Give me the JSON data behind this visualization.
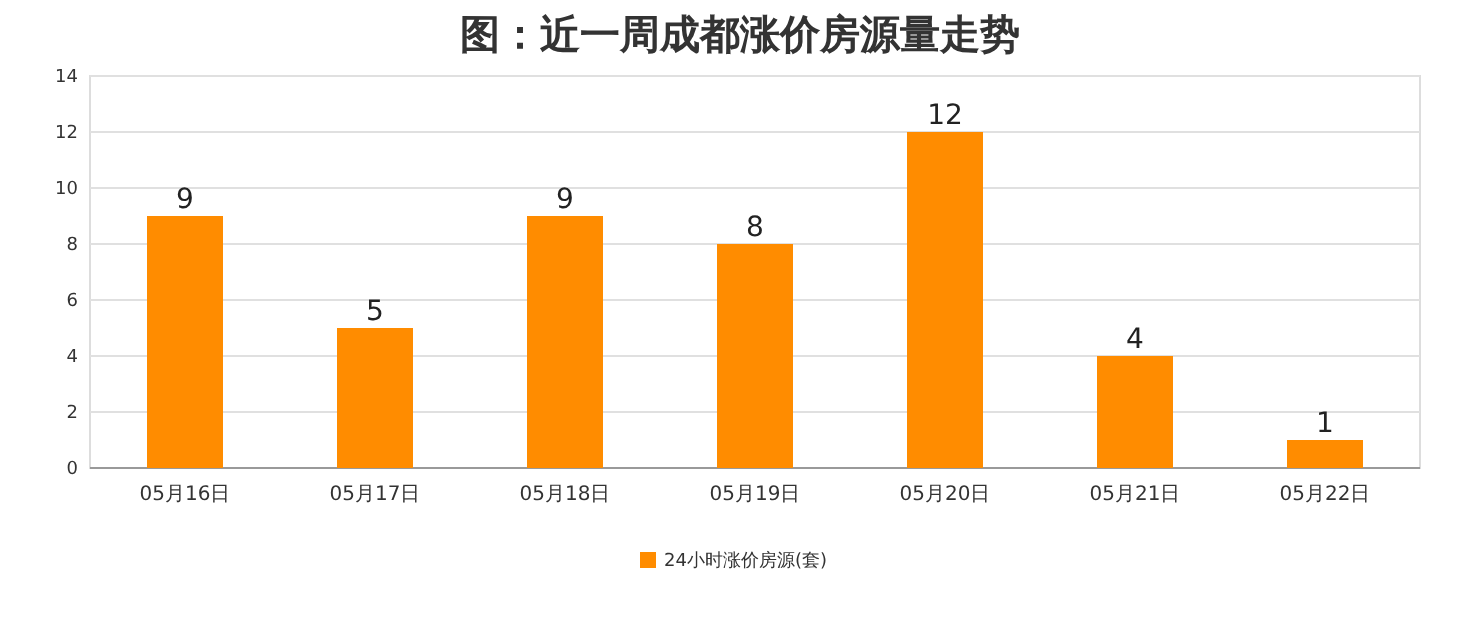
{
  "chart_data": {
    "type": "bar",
    "title": "图：近一周成都涨价房源量走势",
    "categories": [
      "05月16日",
      "05月17日",
      "05月18日",
      "05月19日",
      "05月20日",
      "05月21日",
      "05月22日"
    ],
    "series": [
      {
        "name": "24小时涨价房源(套)",
        "color": "#ff8c00",
        "values": [
          9,
          5,
          9,
          8,
          12,
          4,
          1
        ]
      }
    ],
    "ylim": [
      0,
      14
    ],
    "yticks": [
      0,
      2,
      4,
      6,
      8,
      10,
      12,
      14
    ],
    "grid": "y",
    "legend": "bottom",
    "data_labels": true
  }
}
